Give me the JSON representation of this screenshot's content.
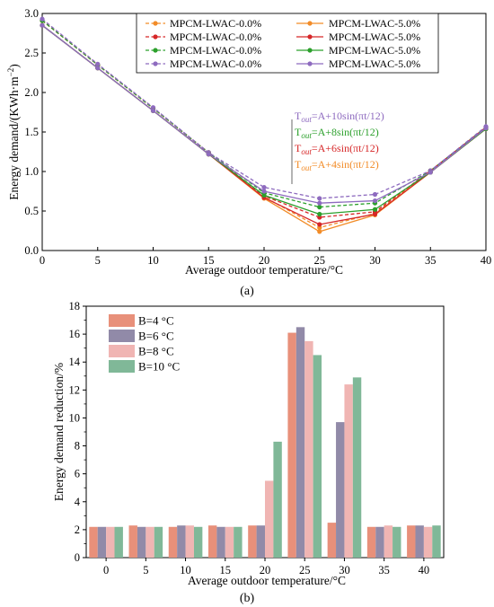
{
  "chart_data": [
    {
      "type": "line",
      "panel_label": "(a)",
      "xlabel": "Average outdoor temperature/°C",
      "ylabel": "Energy demand/(KWh·m",
      "ylabel_sup": "−2",
      "ylabel_close": ")",
      "x": [
        0,
        5,
        10,
        15,
        20,
        25,
        30,
        35,
        40
      ],
      "xticks": [
        "0",
        "5",
        "10",
        "15",
        "20",
        "25",
        "30",
        "35",
        "40"
      ],
      "yticks": [
        "0.0",
        "0.5",
        "1.0",
        "1.5",
        "2.0",
        "2.5",
        "3.0"
      ],
      "xlim": [
        0,
        40
      ],
      "ylim": [
        0,
        3.0
      ],
      "grid": false,
      "legend_position": "top-center",
      "series": [
        {
          "name": "MPCM-LWAC-0.0%",
          "color": "#F28C28",
          "dashed": true,
          "values": [
            2.91,
            2.35,
            1.8,
            1.24,
            0.68,
            0.29,
            0.47,
            1.01,
            1.56
          ]
        },
        {
          "name": "MPCM-LWAC-0.0%",
          "color": "#D62728",
          "dashed": true,
          "values": [
            2.91,
            2.35,
            1.8,
            1.24,
            0.69,
            0.42,
            0.49,
            1.01,
            1.56
          ]
        },
        {
          "name": "MPCM-LWAC-0.0%",
          "color": "#2CA02C",
          "dashed": true,
          "values": [
            2.91,
            2.35,
            1.8,
            1.24,
            0.73,
            0.55,
            0.6,
            1.01,
            1.56
          ]
        },
        {
          "name": "MPCM-LWAC-0.0%",
          "color": "#8E6BBF",
          "dashed": true,
          "values": [
            2.93,
            2.36,
            1.81,
            1.24,
            0.8,
            0.66,
            0.71,
            1.01,
            1.57
          ]
        },
        {
          "name": "MPCM-LWAC-5.0%",
          "color": "#F28C28",
          "dashed": false,
          "values": [
            2.85,
            2.31,
            1.77,
            1.22,
            0.66,
            0.24,
            0.45,
            0.99,
            1.54
          ]
        },
        {
          "name": "MPCM-LWAC-5.0%",
          "color": "#D62728",
          "dashed": false,
          "values": [
            2.85,
            2.31,
            1.77,
            1.22,
            0.67,
            0.33,
            0.46,
            0.99,
            1.54
          ]
        },
        {
          "name": "MPCM-LWAC-5.0%",
          "color": "#2CA02C",
          "dashed": false,
          "values": [
            2.85,
            2.31,
            1.77,
            1.22,
            0.7,
            0.46,
            0.52,
            0.99,
            1.54
          ]
        },
        {
          "name": "MPCM-LWAC-5.0%",
          "color": "#8E6BBF",
          "dashed": false,
          "values": [
            2.85,
            2.31,
            1.77,
            1.22,
            0.75,
            0.6,
            0.63,
            0.99,
            1.55
          ]
        }
      ],
      "annotations": [
        {
          "prefix": "T",
          "sub": "out",
          "text": "=A+10sin(πt/12)",
          "color": "#8E6BBF"
        },
        {
          "prefix": "T",
          "sub": "out",
          "text": "=A+8sin(πt/12)",
          "color": "#2CA02C"
        },
        {
          "prefix": "T",
          "sub": "out",
          "text": "=A+6sin(πt/12)",
          "color": "#D62728"
        },
        {
          "prefix": "T",
          "sub": "out",
          "text": "=A+4sin(πt/12)",
          "color": "#F28C28"
        }
      ]
    },
    {
      "type": "bar",
      "panel_label": "(b)",
      "xlabel": "Average outdoor temperature/°C",
      "ylabel": "Energy demand reduction/%",
      "categories": [
        "0",
        "5",
        "10",
        "15",
        "20",
        "25",
        "30",
        "35",
        "40"
      ],
      "yticks": [
        "0",
        "2",
        "4",
        "6",
        "8",
        "10",
        "12",
        "14",
        "16",
        "18"
      ],
      "ylim": [
        0,
        18
      ],
      "grid": false,
      "legend_position": "top-left",
      "series": [
        {
          "name": "B=4 °C",
          "color": "#E8907A",
          "values": [
            2.2,
            2.3,
            2.2,
            2.3,
            2.3,
            16.1,
            2.5,
            2.2,
            2.3
          ]
        },
        {
          "name": "B=6 °C",
          "color": "#918AA8",
          "values": [
            2.2,
            2.2,
            2.3,
            2.2,
            2.3,
            16.5,
            9.7,
            2.2,
            2.3
          ]
        },
        {
          "name": "B=8 °C",
          "color": "#F0B5B3",
          "values": [
            2.2,
            2.2,
            2.3,
            2.2,
            5.5,
            15.5,
            12.4,
            2.3,
            2.2
          ]
        },
        {
          "name": "B=10 °C",
          "color": "#80B898",
          "values": [
            2.2,
            2.2,
            2.2,
            2.2,
            8.3,
            14.5,
            12.9,
            2.2,
            2.3
          ]
        }
      ]
    }
  ]
}
